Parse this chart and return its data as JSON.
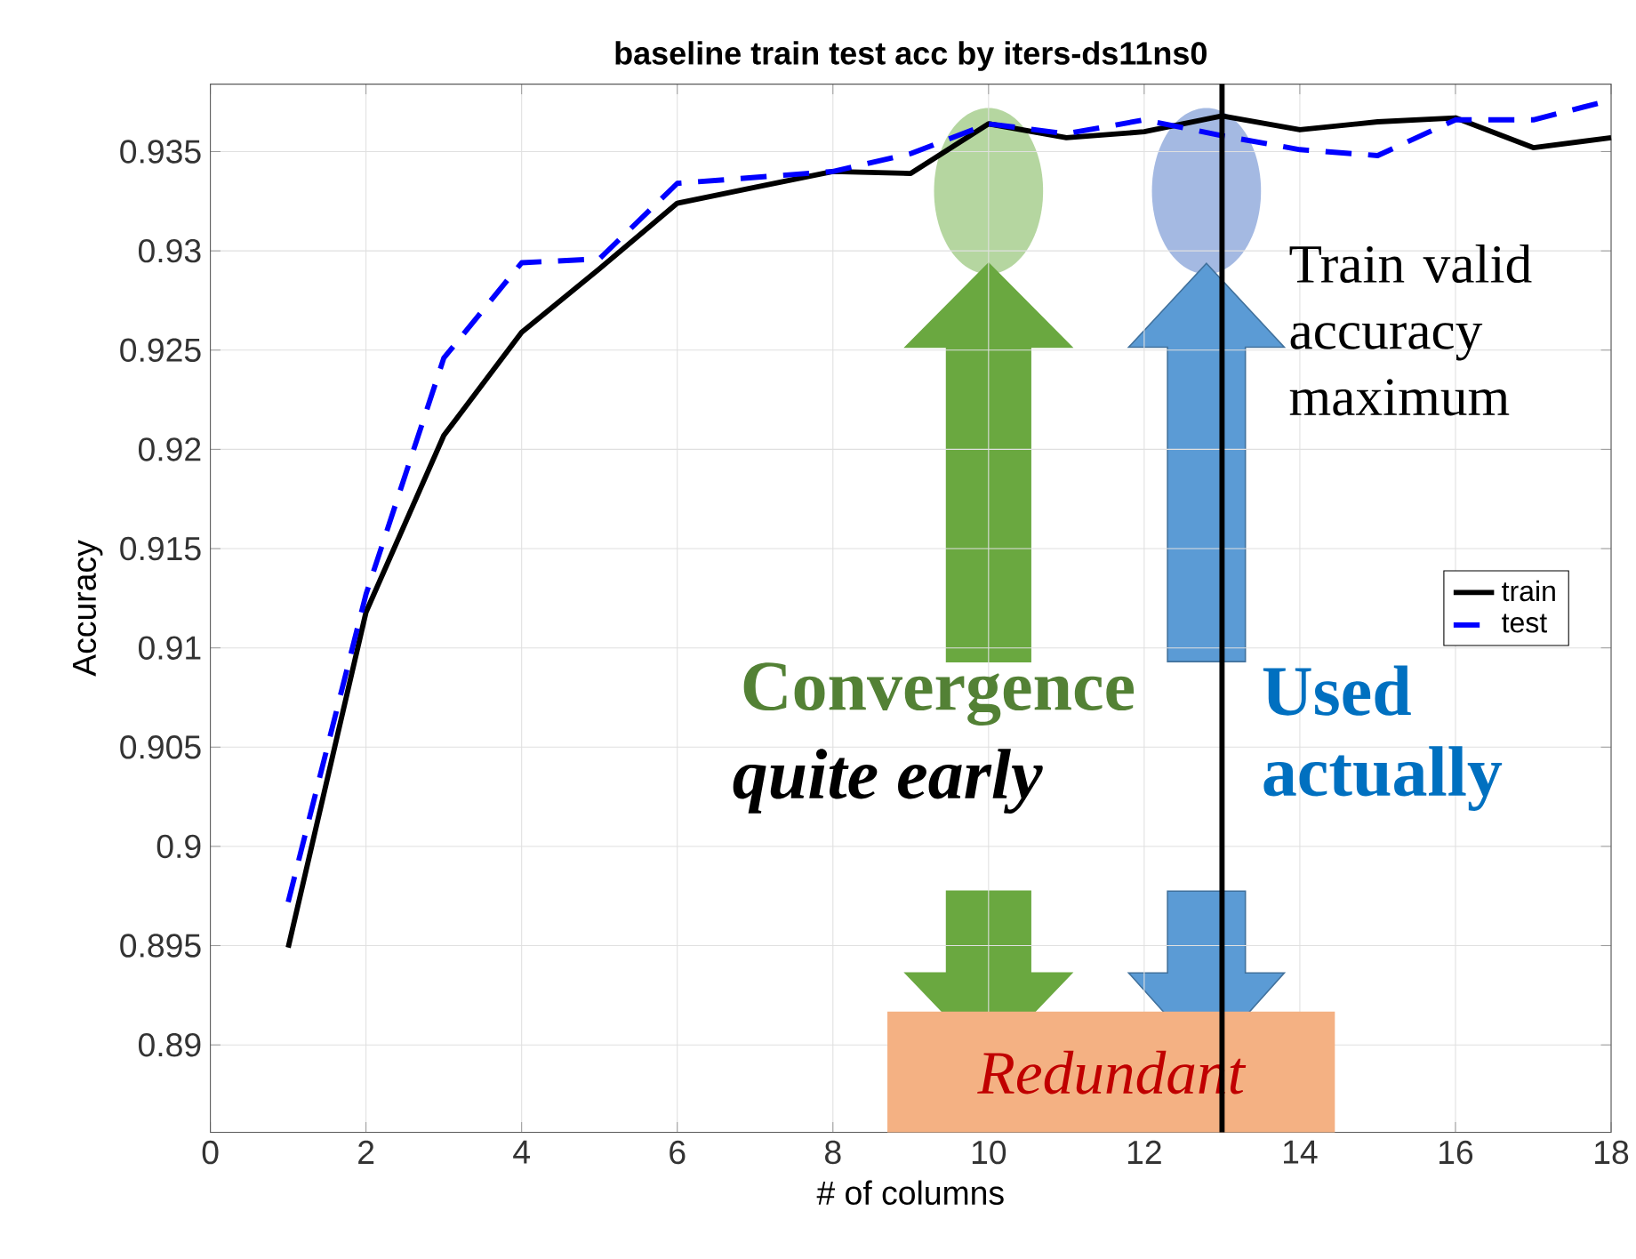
{
  "chart_data": {
    "type": "line",
    "title": "baseline train test acc by iters-ds11ns0",
    "xlabel": "# of columns",
    "ylabel": "Accuracy",
    "x": [
      1,
      2,
      3,
      4,
      5,
      6,
      7,
      8,
      9,
      10,
      11,
      12,
      13,
      14,
      15,
      16,
      17,
      18
    ],
    "series": [
      {
        "name": "train",
        "color": "#000000",
        "line_style": "solid",
        "values": [
          0.8949,
          0.9118,
          0.9207,
          0.9259,
          0.9291,
          0.9324,
          0.9332,
          0.934,
          0.9339,
          0.9364,
          0.9357,
          0.936,
          0.9368,
          0.9361,
          0.9365,
          0.9367,
          0.9352,
          0.9357
        ]
      },
      {
        "name": "test",
        "color": "#0000ff",
        "line_style": "dashed",
        "values": [
          0.8972,
          0.9127,
          0.9246,
          0.9294,
          0.9296,
          0.9334,
          0.9337,
          0.934,
          0.9349,
          0.9364,
          0.9359,
          0.9366,
          0.9358,
          0.9351,
          0.9348,
          0.9366,
          0.9366,
          0.9376
        ]
      }
    ],
    "xlim": [
      0,
      18
    ],
    "ylim": [
      0.8856,
      0.9384
    ],
    "xticks": [
      0,
      2,
      4,
      6,
      8,
      10,
      12,
      14,
      16,
      18
    ],
    "yticks": [
      0.89,
      0.895,
      0.9,
      0.905,
      0.91,
      0.915,
      0.92,
      0.925,
      0.93,
      0.935
    ],
    "grid": true,
    "legend": "right",
    "marker": "none",
    "ref_lines": [
      {
        "axis": "x",
        "value": 13,
        "label": "Train valid accuracy maximum",
        "color": "#000000"
      }
    ],
    "bands": [
      {
        "axis": "x",
        "from": 8.7,
        "to": 14.45,
        "label": "Redundant",
        "color": "#f4b183"
      }
    ],
    "annotations": [
      "Convergence",
      "quite early",
      "Used actually"
    ]
  }
}
